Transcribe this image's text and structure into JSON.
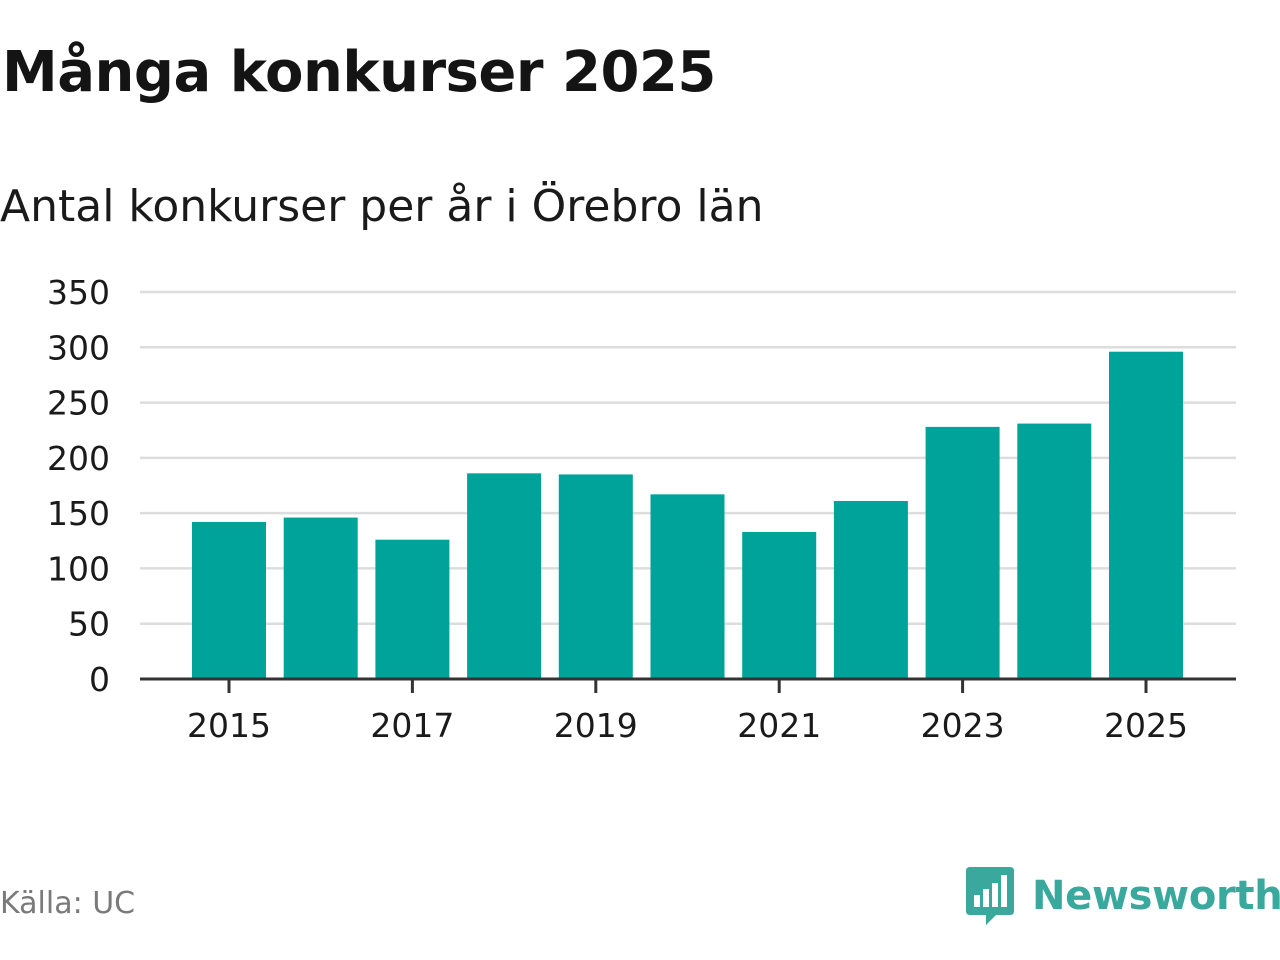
{
  "title": "Många konkurser 2025",
  "subtitle": "Antal konkurser per år i Örebro län",
  "source": "Källa: UC",
  "brand": {
    "name": "Newsworthy",
    "color": "#3aa89c",
    "icon": "newsworthy-logo-icon"
  },
  "colors": {
    "bar": "#00a39a",
    "grid": "#dddddd",
    "axis": "#333333"
  },
  "chart_data": {
    "type": "bar",
    "categories": [
      "2015",
      "2016",
      "2017",
      "2018",
      "2019",
      "2020",
      "2021",
      "2022",
      "2023",
      "2024",
      "2025"
    ],
    "values": [
      142,
      146,
      126,
      186,
      185,
      167,
      133,
      161,
      228,
      231,
      296
    ],
    "x_tick_labels": [
      "2015",
      "2017",
      "2019",
      "2021",
      "2023",
      "2025"
    ],
    "y_ticks": [
      "0",
      "50",
      "100",
      "150",
      "200",
      "250",
      "300",
      "350"
    ],
    "ylim": [
      0,
      350
    ],
    "grid": true,
    "legend": "none"
  }
}
